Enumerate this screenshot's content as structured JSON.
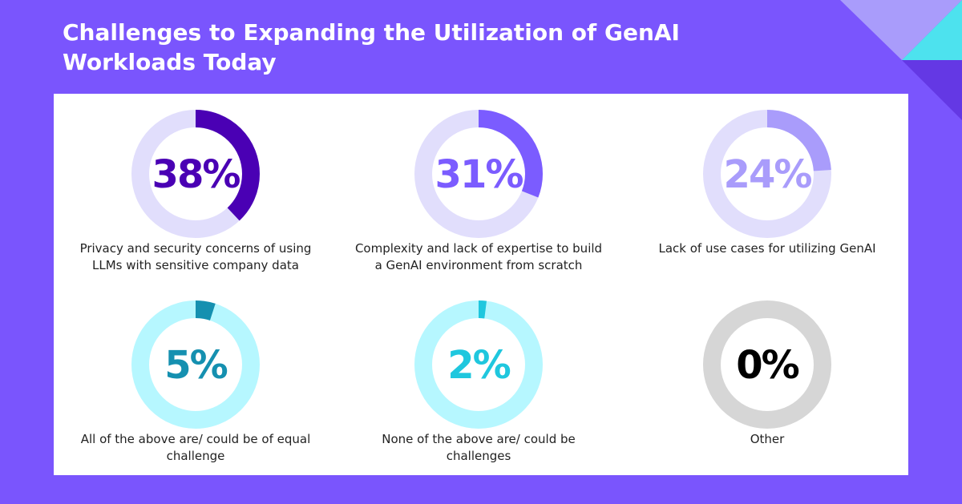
{
  "title": "Challenges to Expanding the Utilization of GenAI Workloads Today",
  "chart_data": [
    {
      "type": "donut",
      "categories": [
        "Privacy and security concerns of using LLMs with sensitive company data"
      ],
      "values": [
        38
      ],
      "value_labels": [
        "38%"
      ],
      "color": "#4a00b4",
      "track_color": "#e1defc"
    },
    {
      "type": "donut",
      "categories": [
        "Complexity and lack of expertise to build a GenAI environment from scratch"
      ],
      "values": [
        31
      ],
      "value_labels": [
        "31%"
      ],
      "color": "#7b5cff",
      "track_color": "#e1defc"
    },
    {
      "type": "donut",
      "categories": [
        "Lack of use cases for utilizing GenAI"
      ],
      "values": [
        24
      ],
      "value_labels": [
        "24%"
      ],
      "color": "#a99cfb",
      "track_color": "#e1defc"
    },
    {
      "type": "donut",
      "categories": [
        "All of the above are/ could be of equal challenge"
      ],
      "values": [
        5
      ],
      "value_labels": [
        "5%"
      ],
      "color": "#1590b0",
      "track_color": "#b6f7ff"
    },
    {
      "type": "donut",
      "categories": [
        "None of the above are/ could be challenges"
      ],
      "values": [
        2
      ],
      "value_labels": [
        "2%"
      ],
      "color": "#1fc7de",
      "track_color": "#b6f7ff"
    },
    {
      "type": "donut",
      "categories": [
        "Other"
      ],
      "values": [
        0
      ],
      "value_labels": [
        "0%"
      ],
      "color": "#000000",
      "track_color": "#d6d6d6"
    }
  ]
}
